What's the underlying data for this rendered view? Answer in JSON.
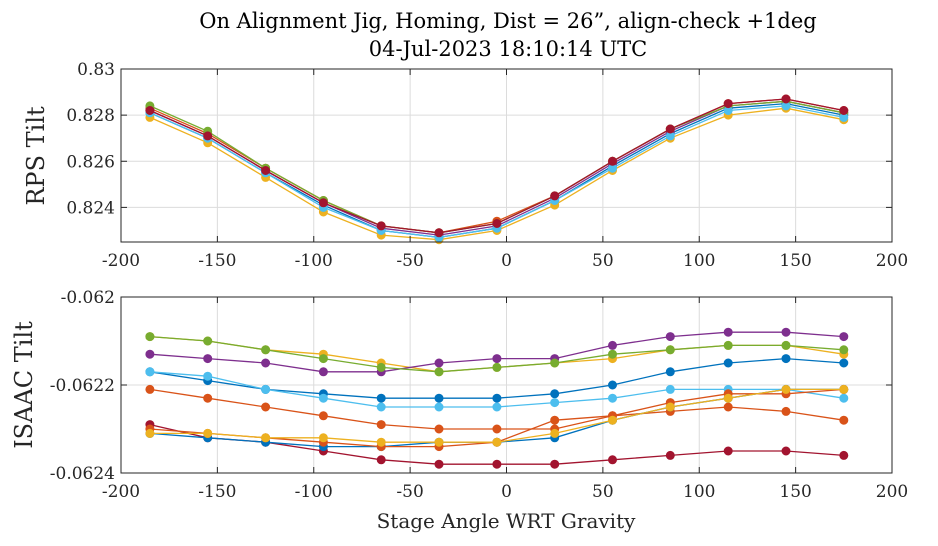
{
  "chart_data": {
    "title_line1": "On Alignment Jig, Homing, Dist = 26”, align-check +1deg",
    "title_line2": "04-Jul-2023 18:10:14 UTC",
    "xlabel": "Stage Angle WRT Gravity",
    "colors": [
      "#0072BD",
      "#D95319",
      "#EDB120",
      "#7E2F8E",
      "#77AC30",
      "#4DBEEE",
      "#A2142F"
    ],
    "panels": [
      {
        "type": "line",
        "ylabel": "RPS Tilt",
        "xlim": [
          -200,
          200
        ],
        "ylim": [
          0.8225,
          0.83
        ],
        "xticks": [
          -200,
          -150,
          -100,
          -50,
          0,
          50,
          100,
          150,
          200
        ],
        "xtick_labels": [
          "-200",
          "-150",
          "-100",
          "-50",
          "0",
          "50",
          "100",
          "150",
          "200"
        ],
        "yticks": [
          0.824,
          0.826,
          0.828,
          0.83
        ],
        "ytick_labels": [
          "0.824",
          "0.826",
          "0.828",
          "0.83"
        ],
        "grid": true,
        "x": [
          -185,
          -155,
          -125,
          -95,
          -65,
          -35,
          -5,
          25,
          55,
          85,
          115,
          145,
          175
        ],
        "series": [
          {
            "values": [
              0.8281,
              0.827,
              0.8255,
              0.8241,
              0.823,
              0.8227,
              0.8231,
              0.8243,
              0.8258,
              0.8272,
              0.8283,
              0.8285,
              0.828
            ]
          },
          {
            "values": [
              0.8283,
              0.8272,
              0.8257,
              0.8243,
              0.8232,
              0.8229,
              0.8234,
              0.8245,
              0.826,
              0.8274,
              0.8285,
              0.8287,
              0.8282
            ]
          },
          {
            "values": [
              0.8279,
              0.8268,
              0.8253,
              0.8238,
              0.8228,
              0.8226,
              0.823,
              0.8241,
              0.8256,
              0.827,
              0.828,
              0.8283,
              0.8278
            ]
          },
          {
            "values": [
              0.8282,
              0.8271,
              0.8256,
              0.8242,
              0.8231,
              0.8228,
              0.8232,
              0.8244,
              0.8259,
              0.8273,
              0.8284,
              0.8286,
              0.8281
            ]
          },
          {
            "values": [
              0.8284,
              0.8273,
              0.8257,
              0.8243,
              0.8232,
              0.8229,
              0.8233,
              0.8245,
              0.826,
              0.8274,
              0.8284,
              0.8286,
              0.8281
            ]
          },
          {
            "values": [
              0.8281,
              0.827,
              0.8255,
              0.824,
              0.823,
              0.8227,
              0.8231,
              0.8243,
              0.8257,
              0.8271,
              0.8282,
              0.8284,
              0.8279
            ]
          },
          {
            "values": [
              0.8282,
              0.8271,
              0.8256,
              0.8242,
              0.8232,
              0.8229,
              0.8233,
              0.8245,
              0.826,
              0.8274,
              0.8285,
              0.8287,
              0.8282
            ]
          }
        ]
      },
      {
        "type": "line",
        "ylabel": "ISAAC Tilt",
        "xlim": [
          -200,
          200
        ],
        "ylim": [
          -0.0624,
          -0.062
        ],
        "xticks": [
          -200,
          -150,
          -100,
          -50,
          0,
          50,
          100,
          150,
          200
        ],
        "xtick_labels": [
          "-200",
          "-150",
          "-100",
          "-50",
          "0",
          "50",
          "100",
          "150",
          "200"
        ],
        "yticks": [
          -0.0624,
          -0.0622,
          -0.062
        ],
        "ytick_labels": [
          "-0.0624",
          "-0.0622",
          "-0.062"
        ],
        "grid": true,
        "x": [
          -185,
          -155,
          -125,
          -95,
          -65,
          -35,
          -5,
          25,
          55,
          85,
          115,
          145,
          175
        ],
        "series": [
          {
            "values": [
              -0.06217,
              -0.06219,
              -0.06221,
              -0.06222,
              -0.06223,
              -0.06223,
              -0.06223,
              -0.06222,
              -0.0622,
              -0.06217,
              -0.06215,
              -0.06214,
              -0.06215
            ]
          },
          {
            "values": [
              -0.06221,
              -0.06223,
              -0.06225,
              -0.06227,
              -0.06229,
              -0.0623,
              -0.0623,
              -0.0623,
              -0.06227,
              -0.06226,
              -0.06225,
              -0.06226,
              -0.06228
            ]
          },
          {
            "values": [
              -0.06209,
              -0.0621,
              -0.06212,
              -0.06213,
              -0.06215,
              -0.06217,
              -0.06216,
              -0.06215,
              -0.06214,
              -0.06212,
              -0.06211,
              -0.06211,
              -0.06213
            ]
          },
          {
            "values": [
              -0.06213,
              -0.06214,
              -0.06215,
              -0.06217,
              -0.06217,
              -0.06215,
              -0.06214,
              -0.06214,
              -0.06211,
              -0.06209,
              -0.06208,
              -0.06208,
              -0.06209
            ]
          },
          {
            "values": [
              -0.06209,
              -0.0621,
              -0.06212,
              -0.06214,
              -0.06216,
              -0.06217,
              -0.06216,
              -0.06215,
              -0.06213,
              -0.06212,
              -0.06211,
              -0.06211,
              -0.06212
            ]
          },
          {
            "values": [
              -0.06217,
              -0.06218,
              -0.06221,
              -0.06223,
              -0.06225,
              -0.06225,
              -0.06225,
              -0.06224,
              -0.06223,
              -0.06221,
              -0.06221,
              -0.06221,
              -0.06223
            ]
          },
          {
            "values": [
              -0.06229,
              -0.06232,
              -0.06233,
              -0.06235,
              -0.06237,
              -0.06238,
              -0.06238,
              -0.06238,
              -0.06237,
              -0.06236,
              -0.06235,
              -0.06235,
              -0.06236
            ]
          },
          {
            "values": [
              -0.06231,
              -0.06232,
              -0.06233,
              -0.06234,
              -0.06234,
              -0.06233,
              -0.06233,
              -0.06232,
              -0.06228,
              -0.06225,
              -0.06223,
              -0.06221,
              -0.06221
            ]
          },
          {
            "values": [
              -0.0623,
              -0.06231,
              -0.06232,
              -0.06233,
              -0.06234,
              -0.06234,
              -0.06233,
              -0.06228,
              -0.06227,
              -0.06224,
              -0.06222,
              -0.06222,
              -0.06221
            ]
          },
          {
            "values": [
              -0.06231,
              -0.06231,
              -0.06232,
              -0.06232,
              -0.06233,
              -0.06233,
              -0.06233,
              -0.06231,
              -0.06228,
              -0.06225,
              -0.06223,
              -0.06221,
              -0.06221
            ]
          }
        ]
      }
    ]
  }
}
